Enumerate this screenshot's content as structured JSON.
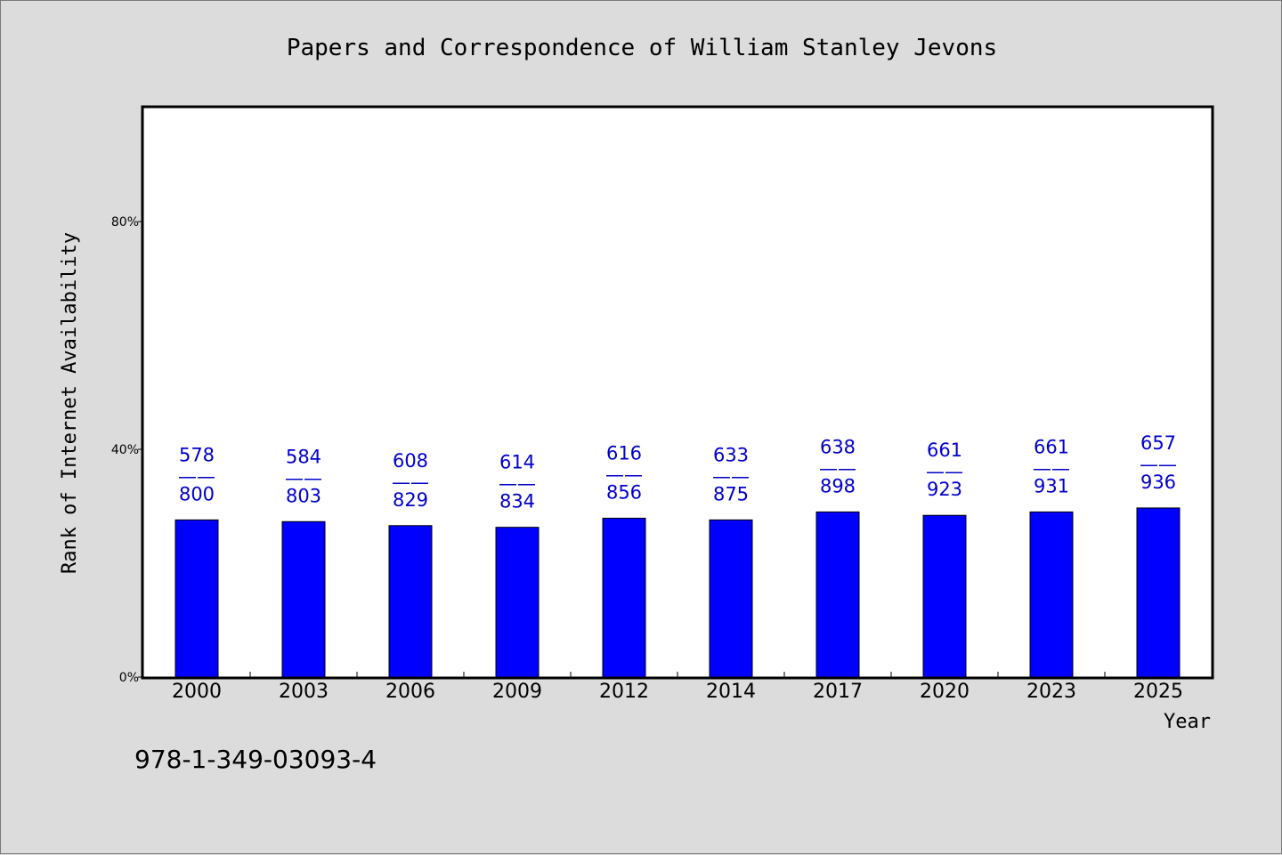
{
  "chart_data": {
    "type": "bar",
    "title": "Papers and Correspondence of William Stanley Jevons",
    "xlabel": "Year",
    "ylabel": "Rank of Internet Availability",
    "categories": [
      "2000",
      "2003",
      "2006",
      "2009",
      "2012",
      "2014",
      "2017",
      "2020",
      "2023",
      "2025"
    ],
    "values": [
      27.6,
      27.3,
      26.6,
      26.3,
      27.9,
      27.6,
      29.0,
      28.4,
      29.0,
      29.7
    ],
    "labels_top": [
      "578",
      "584",
      "608",
      "614",
      "616",
      "633",
      "638",
      "661",
      "661",
      "657"
    ],
    "labels_bottom": [
      "800",
      "803",
      "829",
      "834",
      "856",
      "875",
      "898",
      "923",
      "931",
      "936"
    ],
    "label_separator": "——",
    "ylim": [
      0,
      100
    ],
    "yticks": [
      0,
      40,
      80
    ],
    "ytick_labels": [
      "0%",
      "40%",
      "80%"
    ],
    "bar_color": "#0000ff",
    "label_color": "#0000cc",
    "grid": false,
    "legend": "none"
  },
  "footer": {
    "code": "978-1-349-03093-4"
  }
}
